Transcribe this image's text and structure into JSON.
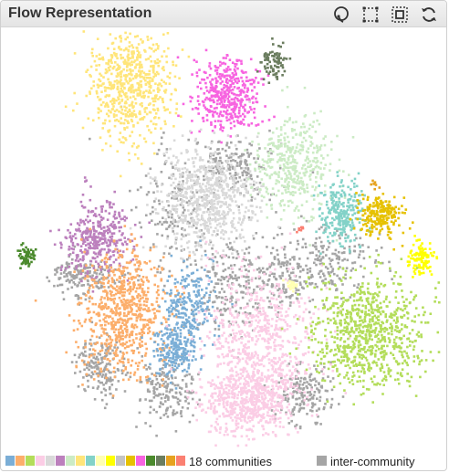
{
  "title": "Flow Representation",
  "toolbar": {
    "lasso_icon": "lasso-icon",
    "select_icon": "rect-select-icon",
    "zoom_icon": "zoom-box-icon",
    "refresh_icon": "refresh-icon"
  },
  "legend": {
    "communities_label": "18 communities",
    "inter_label": "inter-community",
    "inter_color": "#a5a5a5",
    "swatches": [
      "#7baed6",
      "#fcae6b",
      "#b3dd5a",
      "#fbcde5",
      "#d9d9d9",
      "#bc80bd",
      "#ccebc5",
      "#ffe57a",
      "#83d2c8",
      "#ffffb3",
      "#ffff00",
      "#c4c4c4",
      "#e6c100",
      "#f764e0",
      "#4b8a2d",
      "#6b7d5f",
      "#e6a21f",
      "#fb8072"
    ]
  },
  "clusters": [
    {
      "color": "#ffe57a",
      "count": 650
    },
    {
      "color": "#f764e0",
      "count": 420
    },
    {
      "color": "#6b7d5f",
      "count": 90
    },
    {
      "color": "#bc80bd",
      "count": 380
    },
    {
      "color": "#d9d9d9",
      "count": 700
    },
    {
      "color": "#ccebc5",
      "count": 420
    },
    {
      "color": "#83d2c8",
      "count": 260
    },
    {
      "color": "#e6c100",
      "count": 220
    },
    {
      "color": "#ffff00",
      "count": 110
    },
    {
      "color": "#4b8a2d",
      "count": 60
    },
    {
      "color": "#fcae6b",
      "count": 720
    },
    {
      "color": "#7baed6",
      "count": 430
    },
    {
      "color": "#fbcde5",
      "count": 1250
    },
    {
      "color": "#b3dd5a",
      "count": 820
    },
    {
      "color": "#ffffb3",
      "count": 30
    },
    {
      "color": "#e6a21f",
      "count": 8
    },
    {
      "color": "#fb8072",
      "count": 8
    },
    {
      "color": "#a5a5a5",
      "count": 1600
    }
  ]
}
